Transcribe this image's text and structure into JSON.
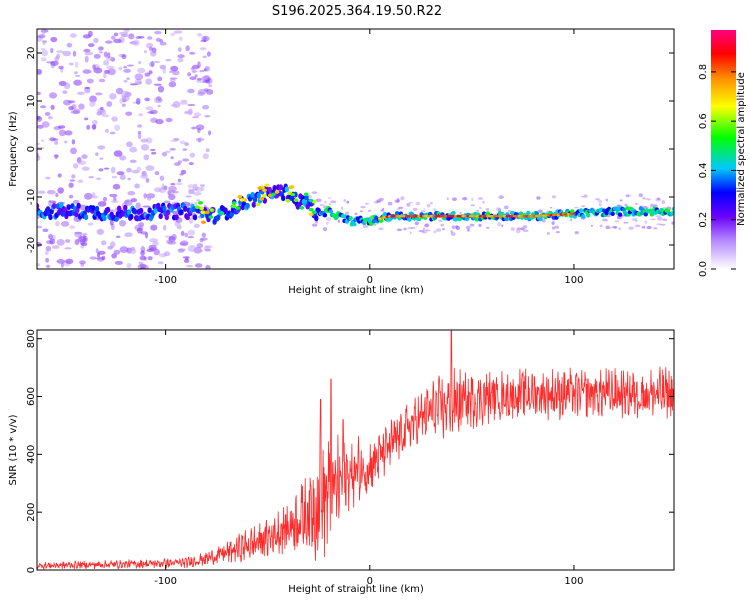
{
  "title": "S196.2025.364.19.50.R22",
  "chart_data": [
    {
      "type": "heatmap",
      "name": "spectrogram",
      "xlabel": "Height of straight line (km)",
      "ylabel": "Frequency (Hz)",
      "xlim": [
        -163,
        149
      ],
      "ylim": [
        -25,
        25
      ],
      "xticks": [
        -100,
        0,
        100
      ],
      "yticks": [
        -20,
        -10,
        0,
        10,
        20
      ],
      "colorbar": {
        "label": "Normalized spectral amplitude",
        "range": [
          0,
          0.97
        ],
        "ticks": [
          0.0,
          0.2,
          0.4,
          0.6,
          0.8
        ]
      },
      "ridge": {
        "description": "dominant frequency vs height",
        "x": [
          -163,
          -140,
          -120,
          -100,
          -85,
          -75,
          -65,
          -55,
          -47,
          -40,
          -35,
          -30,
          -25,
          -20,
          -15,
          -10,
          -5,
          0,
          10,
          20,
          40,
          60,
          80,
          100,
          120,
          149
        ],
        "y": [
          -13,
          -13,
          -13.5,
          -13,
          -13,
          -14,
          -12,
          -10,
          -9,
          -9,
          -11,
          -11,
          -14,
          -13,
          -14,
          -15,
          -15,
          -15,
          -14,
          -14,
          -14,
          -14,
          -14,
          -13.5,
          -13,
          -13
        ]
      }
    },
    {
      "type": "line",
      "name": "snr",
      "xlabel": "Height of straight line (km)",
      "ylabel": "SNR (10 * v/v)",
      "xlim": [
        -163,
        149
      ],
      "ylim": [
        0,
        830
      ],
      "xticks": [
        -100,
        0,
        100
      ],
      "yticks": [
        0,
        200,
        400,
        600,
        800
      ],
      "color": "#ff2a2a",
      "envelope": {
        "x": [
          -163,
          -120,
          -90,
          -80,
          -70,
          -60,
          -50,
          -40,
          -30,
          -25,
          -20,
          -15,
          -10,
          0,
          10,
          20,
          30,
          40,
          50,
          60,
          80,
          100,
          120,
          149
        ],
        "mean": [
          15,
          20,
          25,
          40,
          60,
          85,
          110,
          150,
          200,
          240,
          260,
          300,
          330,
          360,
          430,
          500,
          550,
          570,
          590,
          600,
          610,
          610,
          610,
          610
        ],
        "amp": [
          10,
          12,
          14,
          20,
          30,
          45,
          55,
          70,
          110,
          180,
          160,
          130,
          110,
          80,
          70,
          70,
          80,
          100,
          80,
          70,
          70,
          70,
          70,
          70
        ]
      },
      "peaks": {
        "x": [
          -24,
          -19,
          -13,
          40
        ],
        "y": [
          590,
          660,
          520,
          830
        ]
      }
    }
  ]
}
